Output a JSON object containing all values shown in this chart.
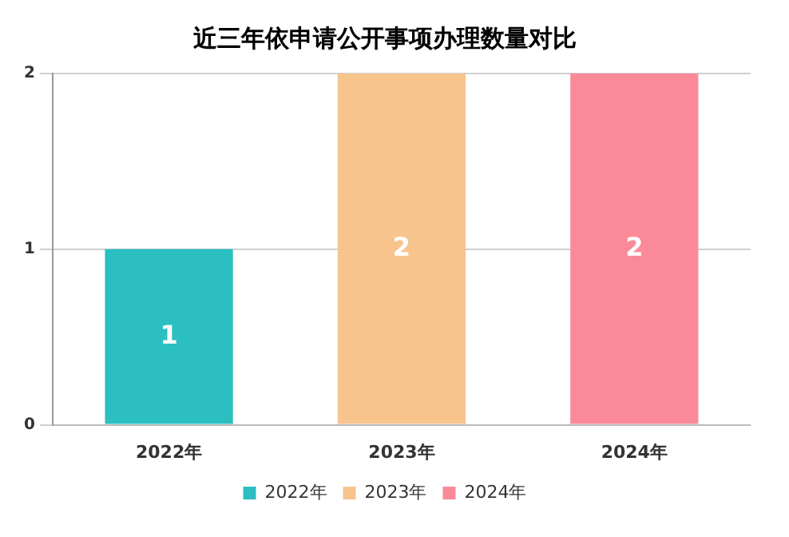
{
  "chart_data": {
    "type": "bar",
    "title": "近三年依申请公开事项办理数量对比",
    "categories": [
      "2022年",
      "2023年",
      "2024年"
    ],
    "series": [
      {
        "name": "2022年",
        "color": "#2bbfc2",
        "values": [
          1,
          null,
          null
        ]
      },
      {
        "name": "2023年",
        "color": "#f7c48e",
        "values": [
          null,
          2,
          null
        ]
      },
      {
        "name": "2024年",
        "color": "#fb8a98",
        "values": [
          null,
          null,
          2
        ]
      }
    ],
    "ylim": [
      0,
      2
    ],
    "yticks": [
      0,
      1,
      2
    ],
    "grid": "y",
    "legend": "bottom",
    "data_labels": true
  }
}
